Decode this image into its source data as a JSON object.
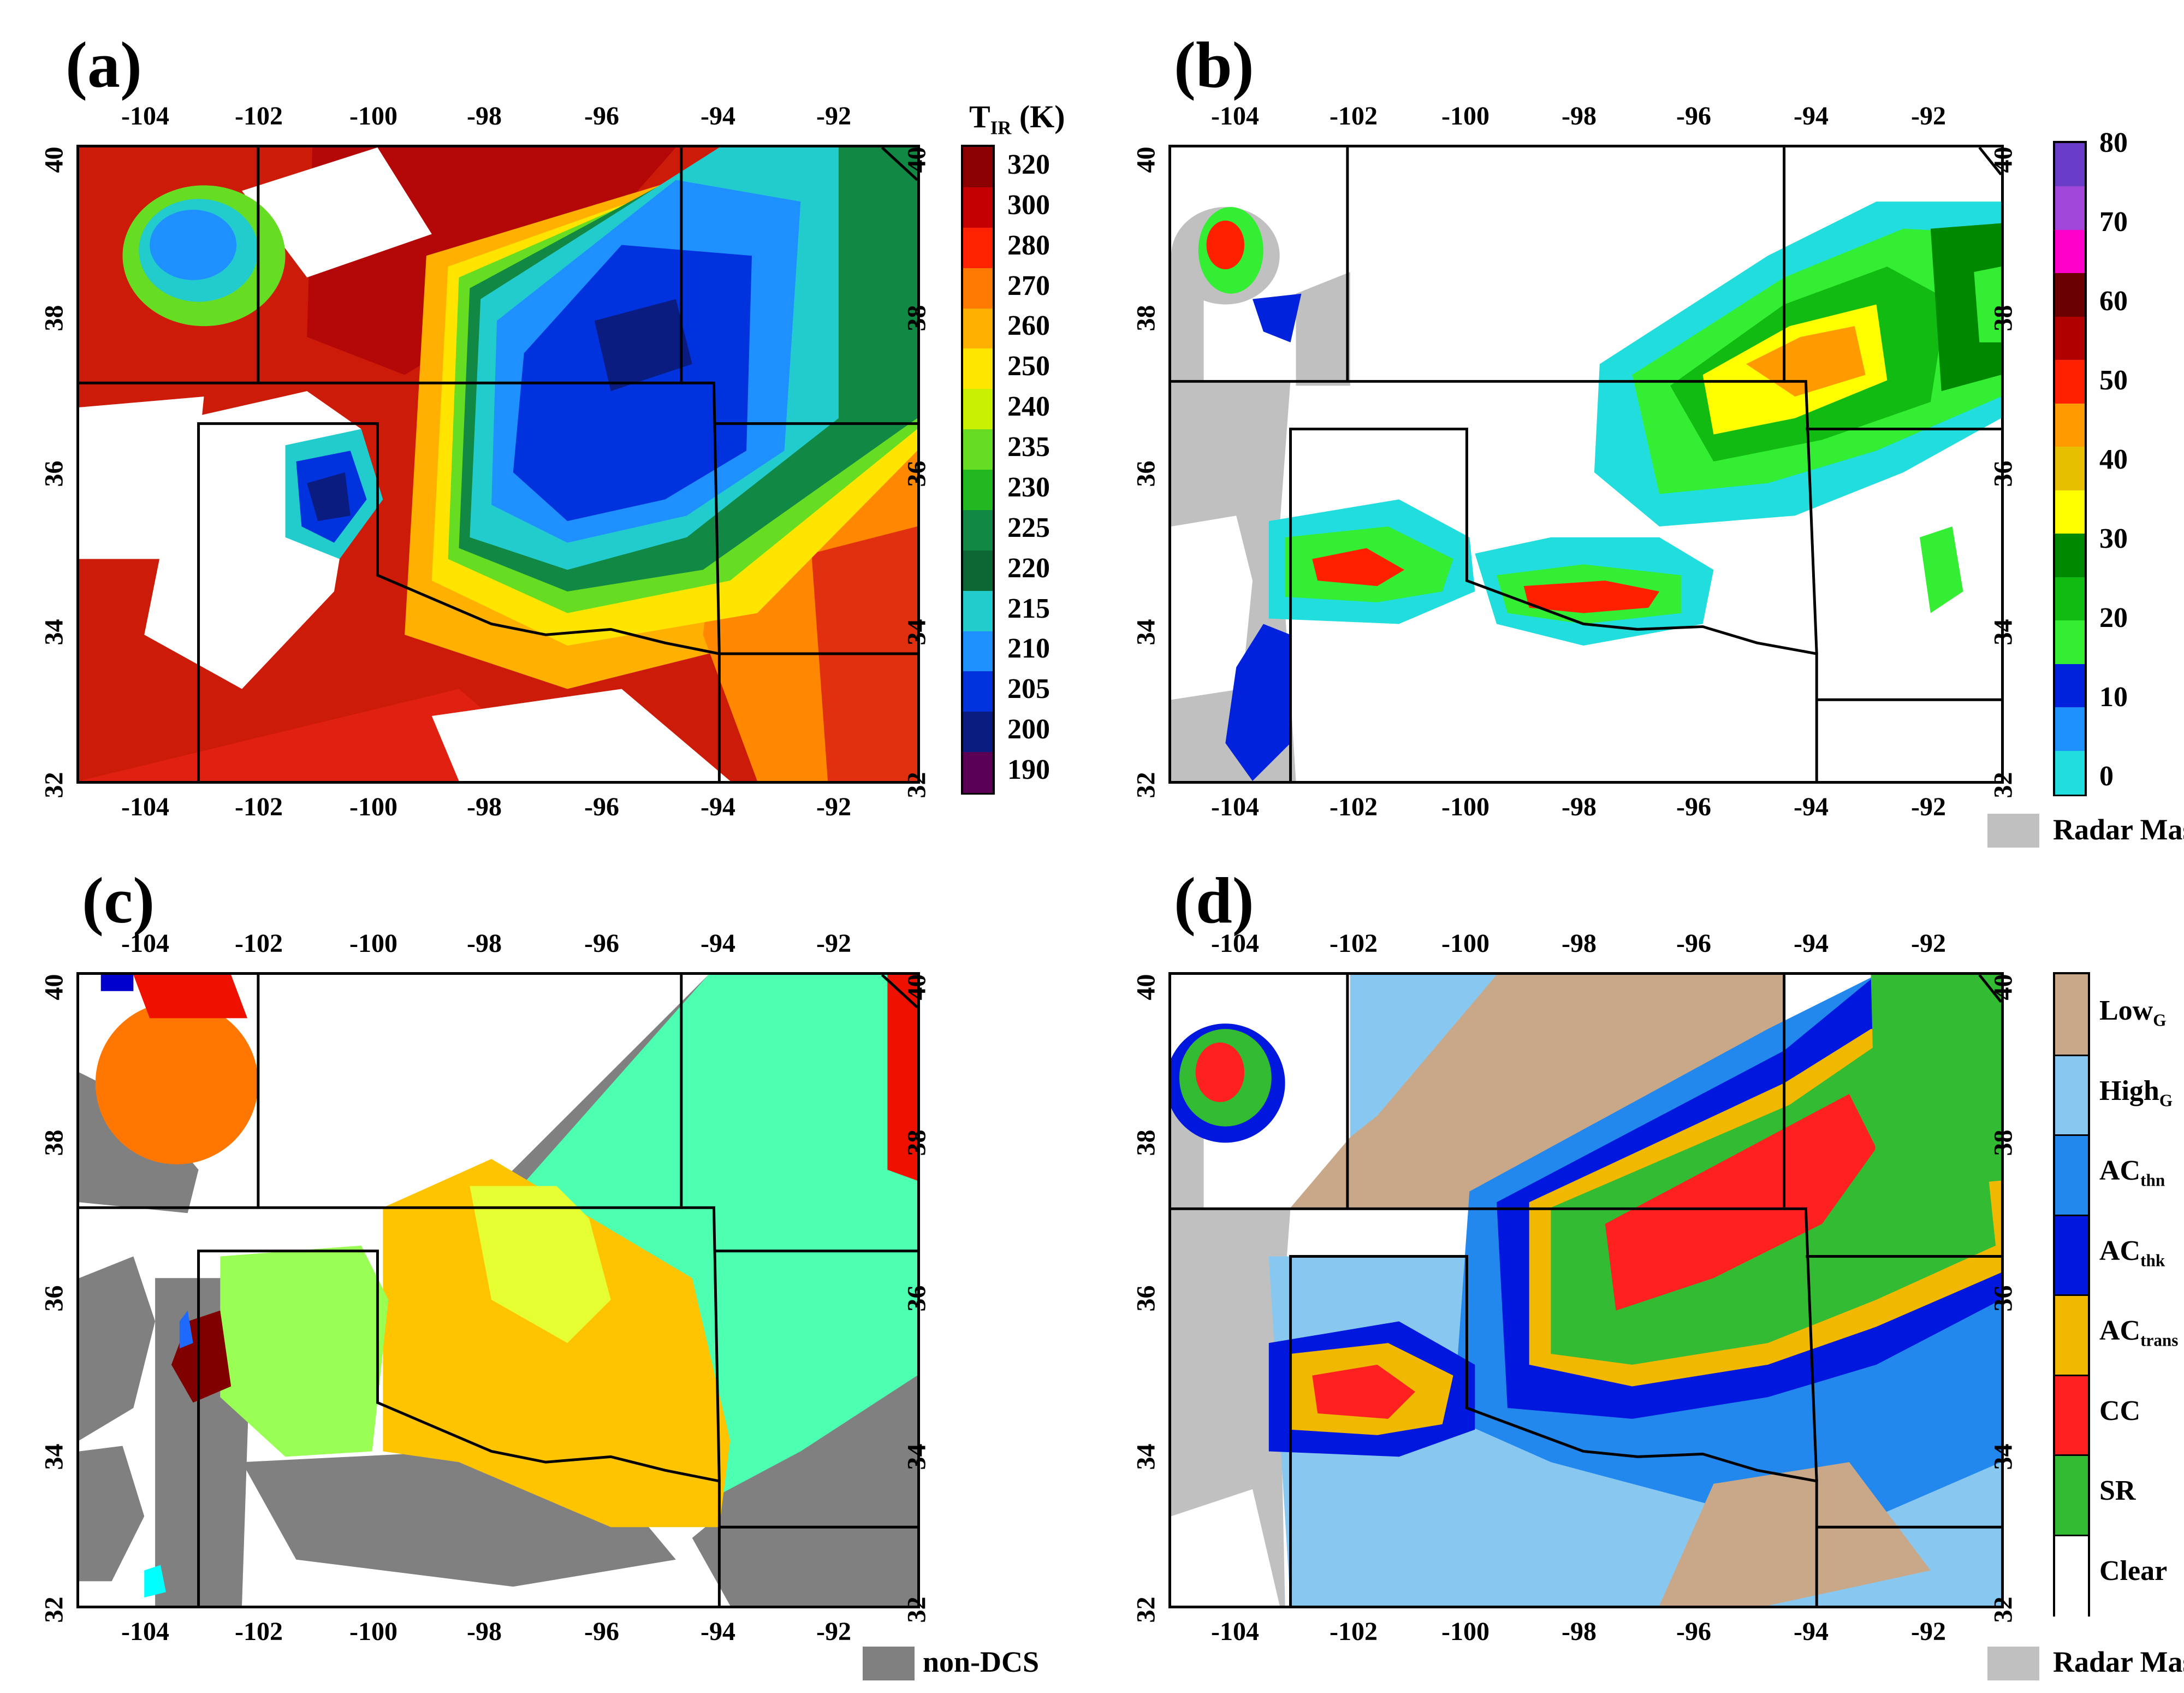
{
  "panels": {
    "a": {
      "label": "(a)"
    },
    "b": {
      "label": "(b)"
    },
    "c": {
      "label": "(c)"
    },
    "d": {
      "label": "(d)"
    }
  },
  "axes": {
    "lon_ticks": [
      "-104",
      "-102",
      "-100",
      "-98",
      "-96",
      "-94",
      "-92"
    ],
    "lat_ticks": [
      "40",
      "38",
      "36",
      "34",
      "32"
    ],
    "lon_range": [
      -105.2,
      -90.8
    ],
    "lat_range": [
      32,
      40
    ]
  },
  "legend_a": {
    "title_main": "T",
    "title_sub": "IR",
    "title_unit": " (K)",
    "labels": [
      "320",
      "300",
      "280",
      "270",
      "260",
      "250",
      "240",
      "235",
      "230",
      "225",
      "220",
      "215",
      "210",
      "205",
      "200",
      "190"
    ],
    "colors": [
      "#8b0000",
      "#c40000",
      "#ff2200",
      "#ff7a00",
      "#ffb000",
      "#ffe600",
      "#c8f000",
      "#66dd22",
      "#22b822",
      "#118844",
      "#0b6633",
      "#22cccc",
      "#1e90ff",
      "#0033dd",
      "#0a1c80",
      "#5a0055"
    ]
  },
  "legend_b": {
    "labels": [
      "80",
      "70",
      "60",
      "50",
      "40",
      "30",
      "20",
      "10",
      "0"
    ],
    "colors": [
      "#6a3dc8",
      "#a046d8",
      "#ff00c8",
      "#6b0000",
      "#b00000",
      "#ff2000",
      "#ff9a00",
      "#e6c000",
      "#ffff00",
      "#008800",
      "#11bb11",
      "#33ee33",
      "#0022dd",
      "#1e90ff",
      "#22dddd"
    ],
    "mask_label": "Radar Mask"
  },
  "legend_c": {
    "mask_label": "non-DCS"
  },
  "legend_d": {
    "categories": [
      {
        "main": "Low",
        "sub": "G",
        "color": "#c8a888"
      },
      {
        "main": "High",
        "sub": "G",
        "color": "#88c8f0"
      },
      {
        "main": "AC",
        "sub": "thn",
        "color": "#2288ee"
      },
      {
        "main": "AC",
        "sub": "thk",
        "color": "#0018dd"
      },
      {
        "main": "AC",
        "sub": "trans",
        "color": "#f0b800"
      },
      {
        "main": "CC",
        "sub": "",
        "color": "#ff2020"
      },
      {
        "main": "SR",
        "sub": "",
        "color": "#33bb33"
      },
      {
        "main": "Clear",
        "sub": "",
        "color": "#ffffff"
      }
    ],
    "mask_label": "Radar Mask"
  },
  "colors": {
    "radar_mask": "#c0c0c0",
    "non_dcs": "#808080"
  }
}
